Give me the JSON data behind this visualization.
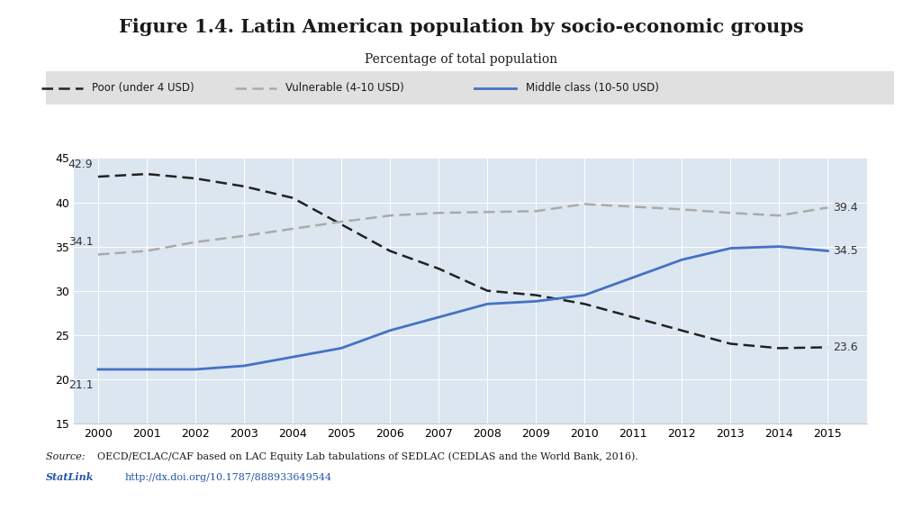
{
  "title": "Figure 1.4. Latin American population by socio-economic groups",
  "subtitle": "Percentage of total population",
  "years": [
    2000,
    2001,
    2002,
    2003,
    2004,
    2005,
    2006,
    2007,
    2008,
    2009,
    2010,
    2011,
    2012,
    2013,
    2014,
    2015
  ],
  "poor": [
    42.9,
    43.2,
    42.7,
    41.8,
    40.5,
    37.5,
    34.5,
    32.5,
    30.0,
    29.5,
    28.5,
    27.0,
    25.5,
    24.0,
    23.5,
    23.6
  ],
  "vulnerable": [
    34.1,
    34.5,
    35.5,
    36.2,
    37.0,
    37.8,
    38.5,
    38.8,
    38.9,
    39.0,
    39.8,
    39.5,
    39.2,
    38.8,
    38.5,
    39.4
  ],
  "middle_class": [
    21.1,
    21.1,
    21.1,
    21.5,
    22.5,
    23.5,
    25.5,
    27.0,
    28.5,
    28.8,
    29.5,
    31.5,
    33.5,
    34.8,
    35.0,
    34.5
  ],
  "poor_color": "#222222",
  "vulnerable_color": "#aaaaaa",
  "middle_class_color": "#4472c4",
  "poor_label": "Poor (under 4 USD)",
  "vulnerable_label": "Vulnerable (4-10 USD)",
  "middle_class_label": "Middle class (10-50 USD)",
  "ylim": [
    15,
    45
  ],
  "yticks": [
    15,
    20,
    25,
    30,
    35,
    40,
    45
  ],
  "plot_bg_color": "#dce6f1",
  "fig_bg_color": "#ffffff",
  "legend_bg": "#e0e0e0",
  "source_text_normal": "OECD/ECLAC/CAF based on LAC Equity Lab tabulations of SEDLAC (CEDLAS and the World Bank, 2016).",
  "source_italic": "Source: ",
  "statlink_url": "http://dx.doi.org/10.1787/888933649544",
  "statlink_label": "StatLink",
  "title_fontsize": 15,
  "subtitle_fontsize": 10,
  "tick_fontsize": 9,
  "annot_fontsize": 9,
  "annotation_poor_start": "42.9",
  "annotation_poor_end": "23.6",
  "annotation_vulnerable_start": "34.1",
  "annotation_vulnerable_end": "39.4",
  "annotation_middle_start": "21.1",
  "annotation_middle_end": "34.5"
}
